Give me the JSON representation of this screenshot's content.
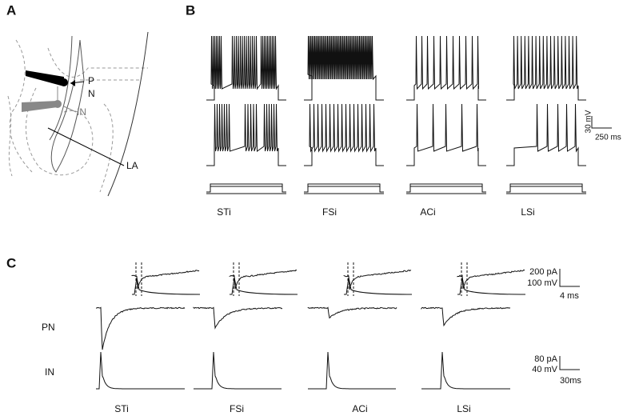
{
  "panel_a": {
    "label": "A",
    "markers": [
      "P",
      "N",
      "IN",
      "LA"
    ]
  },
  "panel_b": {
    "label": "B",
    "scale": [
      "30 mV",
      "250 ms"
    ],
    "cells": [
      "STi",
      "FSi",
      "ACi",
      "LSi"
    ]
  },
  "panel_c": {
    "label": "C",
    "inset_scale": [
      "200 pA",
      "100 mV",
      "4 ms"
    ],
    "rows": [
      "PN",
      "IN"
    ],
    "main_scale": [
      "80 pA",
      "40 mV",
      "30ms"
    ],
    "cells": [
      "STi",
      "FSi",
      "ACi",
      "LSi"
    ]
  }
}
